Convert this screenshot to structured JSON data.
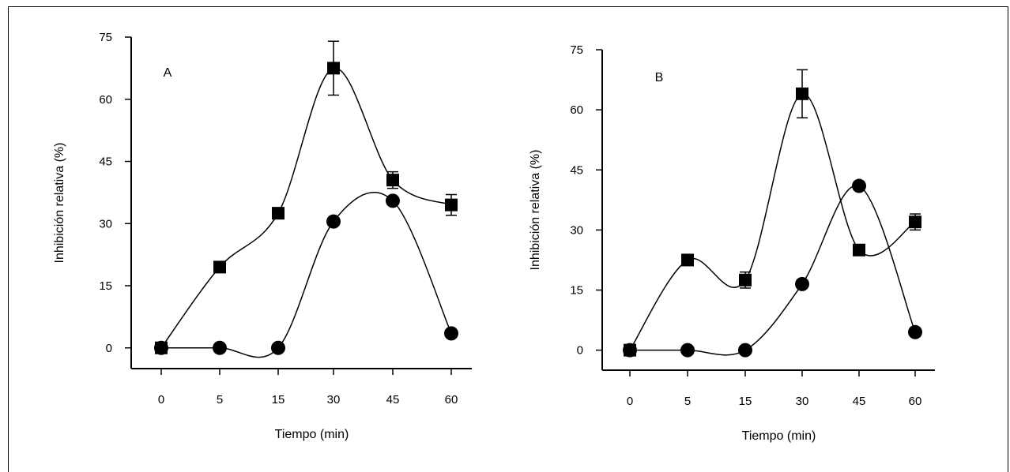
{
  "chart_data": [
    {
      "type": "line",
      "panel_label": "A",
      "xlabel": "Tiempo (min)",
      "ylabel": "Inhibición relativa (%)",
      "categories": [
        "0",
        "5",
        "15",
        "30",
        "45",
        "60"
      ],
      "ylim": [
        -5,
        75
      ],
      "yticks": [
        "0",
        "15",
        "30",
        "45",
        "60",
        "75"
      ],
      "grid": false,
      "series": [
        {
          "marker": "square",
          "values": [
            0,
            19.5,
            32.5,
            67.5,
            40.5,
            34.5
          ],
          "errors": [
            0,
            0,
            0,
            6.5,
            2,
            2.5
          ]
        },
        {
          "marker": "circle",
          "values": [
            0,
            0,
            0,
            30.5,
            35.5,
            3.5
          ],
          "errors": [
            0,
            0,
            0,
            0,
            0,
            0
          ]
        }
      ]
    },
    {
      "type": "line",
      "panel_label": "B",
      "xlabel": "Tiempo (min)",
      "ylabel": "Inhibición relativa (%)",
      "categories": [
        "0",
        "5",
        "15",
        "30",
        "45",
        "60"
      ],
      "ylim": [
        -5,
        75
      ],
      "yticks": [
        "0",
        "15",
        "30",
        "45",
        "60",
        "75"
      ],
      "grid": false,
      "series": [
        {
          "marker": "square",
          "values": [
            0,
            22.5,
            17.5,
            64,
            25,
            32
          ],
          "errors": [
            0,
            0,
            2,
            6,
            0,
            2
          ]
        },
        {
          "marker": "circle",
          "values": [
            0,
            0,
            0,
            16.5,
            41,
            4.5
          ],
          "errors": [
            0,
            0,
            0,
            0,
            1,
            0
          ]
        }
      ]
    }
  ]
}
